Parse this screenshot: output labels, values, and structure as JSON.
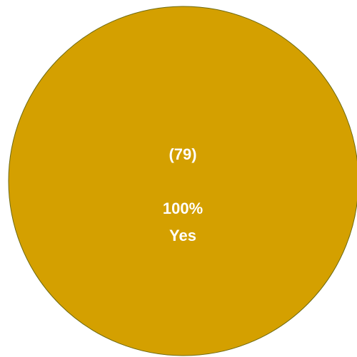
{
  "chart_data": {
    "type": "pie",
    "title": "",
    "slices": [
      {
        "label": "Yes",
        "value": 100,
        "count": 79,
        "count_text": "(79)",
        "percent_text": "100%",
        "color": "#D4A000",
        "stroke": "#6E6A10"
      }
    ],
    "legend": "none"
  }
}
